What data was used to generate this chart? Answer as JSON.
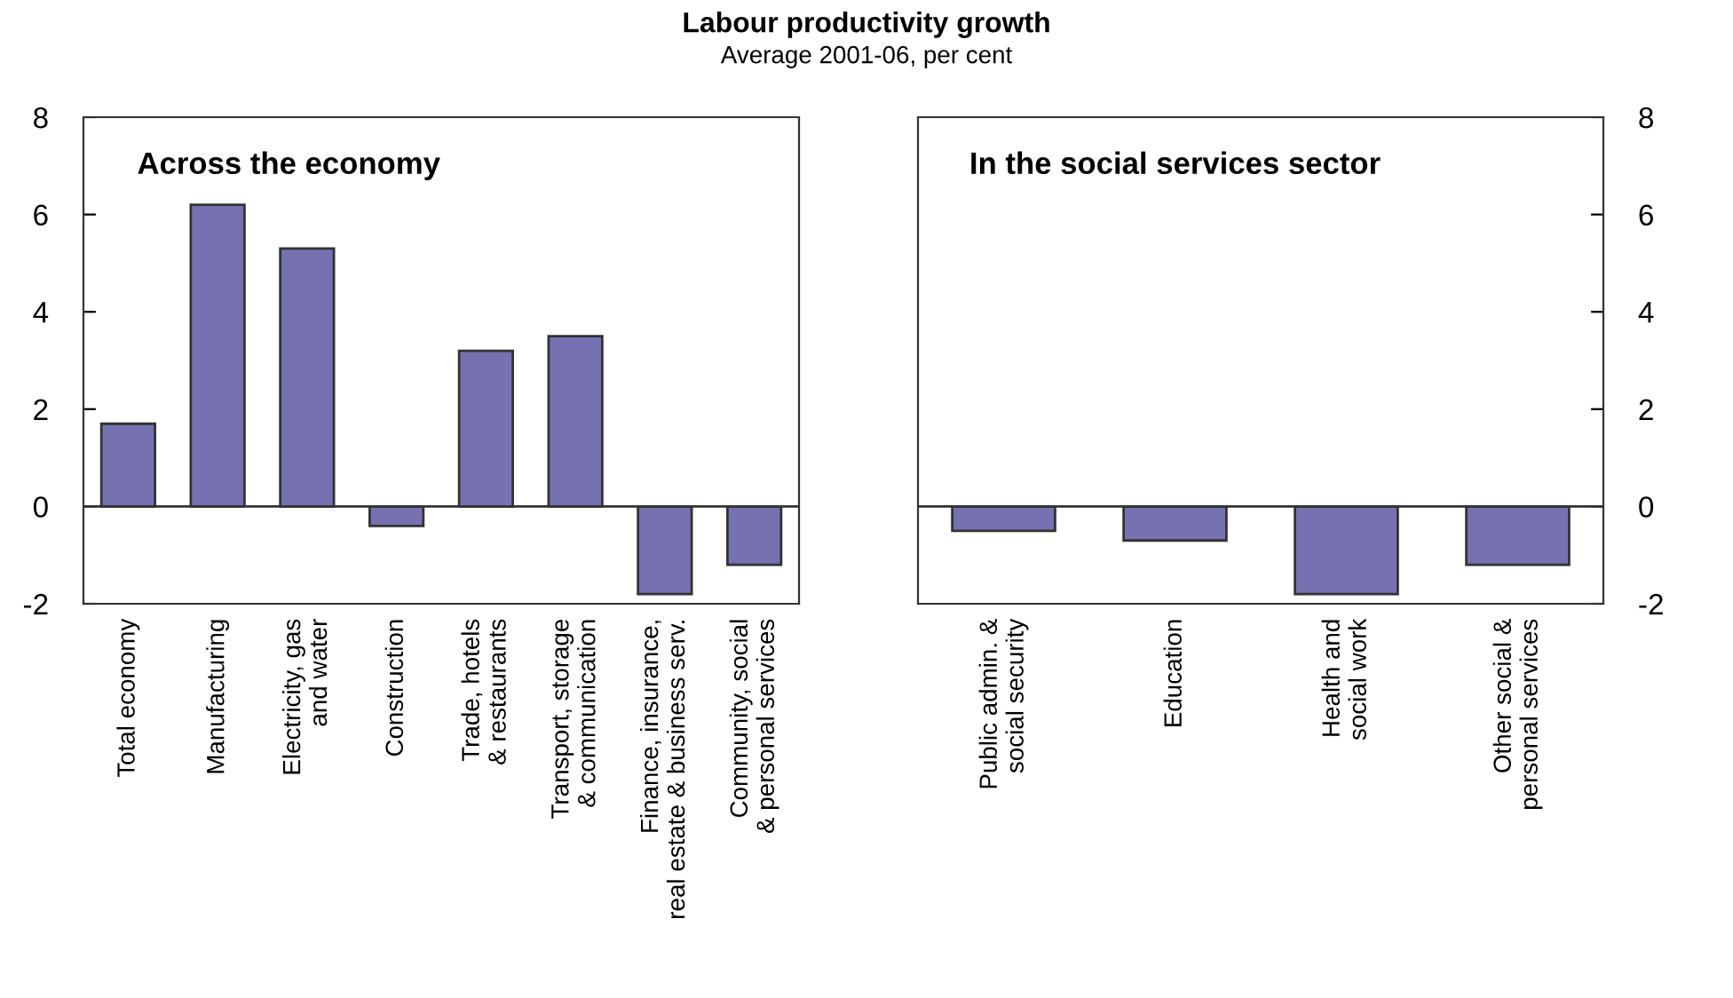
{
  "chart_data": [
    {
      "type": "bar",
      "title": "Labour productivity growth",
      "subtitle": "Average 2001-06, per cent",
      "annotations": [
        "Across the economy"
      ],
      "categories": [
        "Total economy",
        "Manufacturing",
        "Electricity, gas\nand water",
        "Construction",
        "Trade, hotels\n& restaurants",
        "Transport, storage\n& communication",
        "Finance, insurance,\nreal estate & business serv.",
        "Community, social\n& personal services"
      ],
      "values": [
        1.7,
        6.2,
        5.3,
        -0.4,
        3.2,
        3.5,
        -1.8,
        -1.2
      ],
      "color": "#7671b1",
      "ylim": [
        -2,
        8
      ],
      "yticks": [
        -2,
        0,
        2,
        4,
        6,
        8
      ]
    },
    {
      "type": "bar",
      "annotations": [
        "In the social services sector"
      ],
      "categories": [
        "Public admin. &\nsocial security",
        "Education",
        "Health and\nsocial work",
        "Other social &\npersonal services"
      ],
      "values": [
        -0.5,
        -0.7,
        -1.8,
        -1.2
      ],
      "color": "#7671b1",
      "ylim": [
        -2,
        8
      ],
      "yticks": [
        -2,
        0,
        2,
        4,
        6,
        8
      ]
    }
  ]
}
